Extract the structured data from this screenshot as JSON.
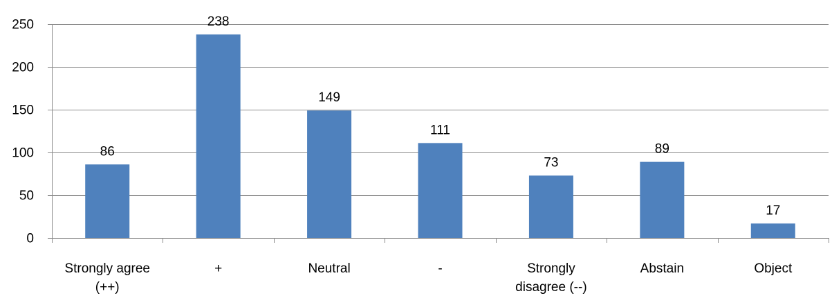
{
  "chart_data": {
    "type": "bar",
    "categories": [
      [
        "Strongly agree",
        "(++)"
      ],
      [
        "+"
      ],
      [
        "Neutral"
      ],
      [
        "-"
      ],
      [
        "Strongly",
        "disagree (--)"
      ],
      [
        "Abstain"
      ],
      [
        "Object"
      ]
    ],
    "values": [
      86,
      238,
      149,
      111,
      73,
      89,
      17
    ],
    "ylim": [
      0,
      250
    ],
    "yticks": [
      0,
      50,
      100,
      150,
      200,
      250
    ],
    "grid": true,
    "legend": "none",
    "bar_color": "#4f81bd"
  }
}
